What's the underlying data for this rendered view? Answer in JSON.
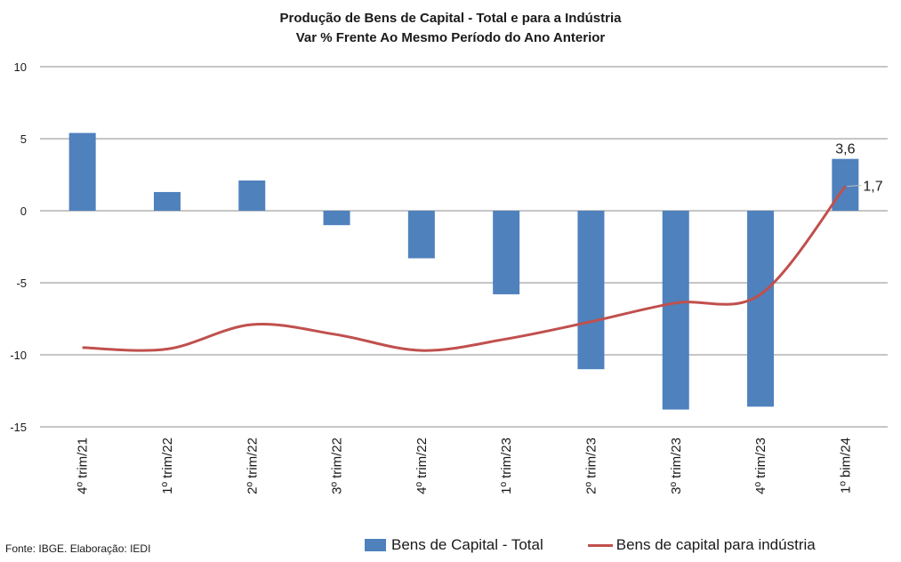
{
  "chart_data": {
    "type": "bar",
    "title": "Produção de Bens de Capital - Total e para a Indústria",
    "subtitle": "Var % Frente Ao Mesmo Período do Ano Anterior",
    "categories": [
      "4º trim/21",
      "1º trim/22",
      "2º trim/22",
      "3º trim/22",
      "4º trim/22",
      "1º trim/23",
      "2º trim/23",
      "3º trim/23",
      "4º trim/23",
      "1º bim/24"
    ],
    "ylim": [
      -15,
      10
    ],
    "yticks": [
      10,
      5,
      0,
      -5,
      -10,
      -15
    ],
    "grid": true,
    "legend_position": "bottom",
    "series": [
      {
        "name": "Bens de Capital - Total",
        "type": "bar",
        "color": "#4f81bd",
        "values": [
          5.4,
          1.3,
          2.1,
          -1.0,
          -3.3,
          -5.8,
          -11.0,
          -13.8,
          -13.6,
          3.6
        ],
        "labels": [
          "",
          "",
          "",
          "",
          "",
          "",
          "",
          "",
          "",
          "3,6"
        ]
      },
      {
        "name": "Bens de capital para indústria",
        "type": "line",
        "color": "#c0504d",
        "values": [
          -9.5,
          -9.6,
          -7.9,
          -8.6,
          -9.7,
          -8.9,
          -7.7,
          -6.4,
          -5.8,
          1.7
        ],
        "labels": [
          "",
          "",
          "",
          "",
          "",
          "",
          "",
          "",
          "",
          "1,7"
        ]
      }
    ]
  },
  "source": "Fonte: IBGE. Elaboração: IEDI"
}
